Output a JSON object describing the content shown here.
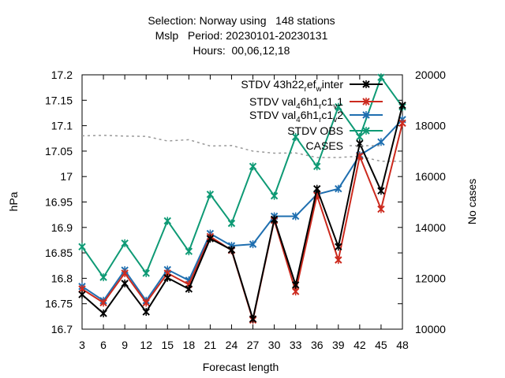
{
  "chart_data": {
    "type": "line",
    "title": [
      "Selection: Norway using   148 stations",
      "Mslp   Period: 20230101-20230131",
      "Hours:  00,06,12,18"
    ],
    "xlabel": "Forecast length",
    "ylabel": "hPa",
    "y2label": "No cases",
    "x": [
      3,
      6,
      9,
      12,
      15,
      18,
      21,
      24,
      27,
      30,
      33,
      36,
      39,
      42,
      45,
      48
    ],
    "ylim": [
      16.7,
      17.2
    ],
    "y2lim": [
      10000,
      20000
    ],
    "yticks": [
      "16.7",
      "16.75",
      "16.8",
      "16.85",
      "16.9",
      "16.95",
      "17",
      "17.05",
      "17.1",
      "17.15",
      "17.2"
    ],
    "y2ticks": [
      "10000",
      "12000",
      "14000",
      "16000",
      "18000",
      "20000"
    ],
    "xticks": [
      "3",
      "6",
      "9",
      "12",
      "15",
      "18",
      "21",
      "24",
      "27",
      "30",
      "33",
      "36",
      "39",
      "42",
      "45",
      "48"
    ],
    "grid": false,
    "legend_position": "top-right",
    "series": [
      {
        "name": "STDV 43h22_ref_winter",
        "legend_parts": [
          "STDV 43h22",
          "r",
          "ef",
          "w",
          "inter"
        ],
        "color": "#000000",
        "axis": "y",
        "values": [
          16.768,
          16.731,
          16.79,
          16.734,
          16.801,
          16.779,
          16.878,
          16.856,
          16.72,
          16.916,
          16.787,
          16.976,
          16.862,
          17.065,
          16.972,
          17.14
        ]
      },
      {
        "name": "STDV val_46h1_rc1_v1",
        "legend_parts": [
          "STDV val",
          "4",
          "6h1",
          "r",
          "c1",
          "v",
          "1"
        ],
        "color": "#cc2a1e",
        "axis": "y",
        "values": [
          16.779,
          16.752,
          16.81,
          16.752,
          16.81,
          16.788,
          16.882,
          16.855,
          16.718,
          16.914,
          16.774,
          16.963,
          16.836,
          17.04,
          16.936,
          17.105
        ]
      },
      {
        "name": "STDV val_46h1_rc1_v2",
        "legend_parts": [
          "STDV val",
          "4",
          "6h1",
          "r",
          "c1",
          "v",
          "2"
        ],
        "color": "#1f6fb0",
        "axis": "y",
        "values": [
          16.784,
          16.756,
          16.816,
          16.756,
          16.817,
          16.796,
          16.888,
          16.864,
          16.867,
          16.922,
          16.922,
          16.965,
          16.976,
          17.042,
          17.068,
          17.112
        ]
      },
      {
        "name": "STDV OBS",
        "legend_parts": [
          "STDV OBS"
        ],
        "color": "#0e9a75",
        "axis": "y",
        "values": [
          16.862,
          16.802,
          16.869,
          16.81,
          16.913,
          16.853,
          16.965,
          16.908,
          17.02,
          16.962,
          17.078,
          17.02,
          17.137,
          17.078,
          17.195,
          17.137
        ]
      },
      {
        "name": "CASES",
        "legend_parts": [
          "CASES"
        ],
        "color": "#999999",
        "axis": "y2",
        "dashed": true,
        "values": [
          17600,
          17620,
          17590,
          17580,
          17400,
          17450,
          17200,
          17220,
          17000,
          16920,
          16930,
          16750,
          16750,
          16800,
          16600,
          16600
        ]
      }
    ]
  }
}
